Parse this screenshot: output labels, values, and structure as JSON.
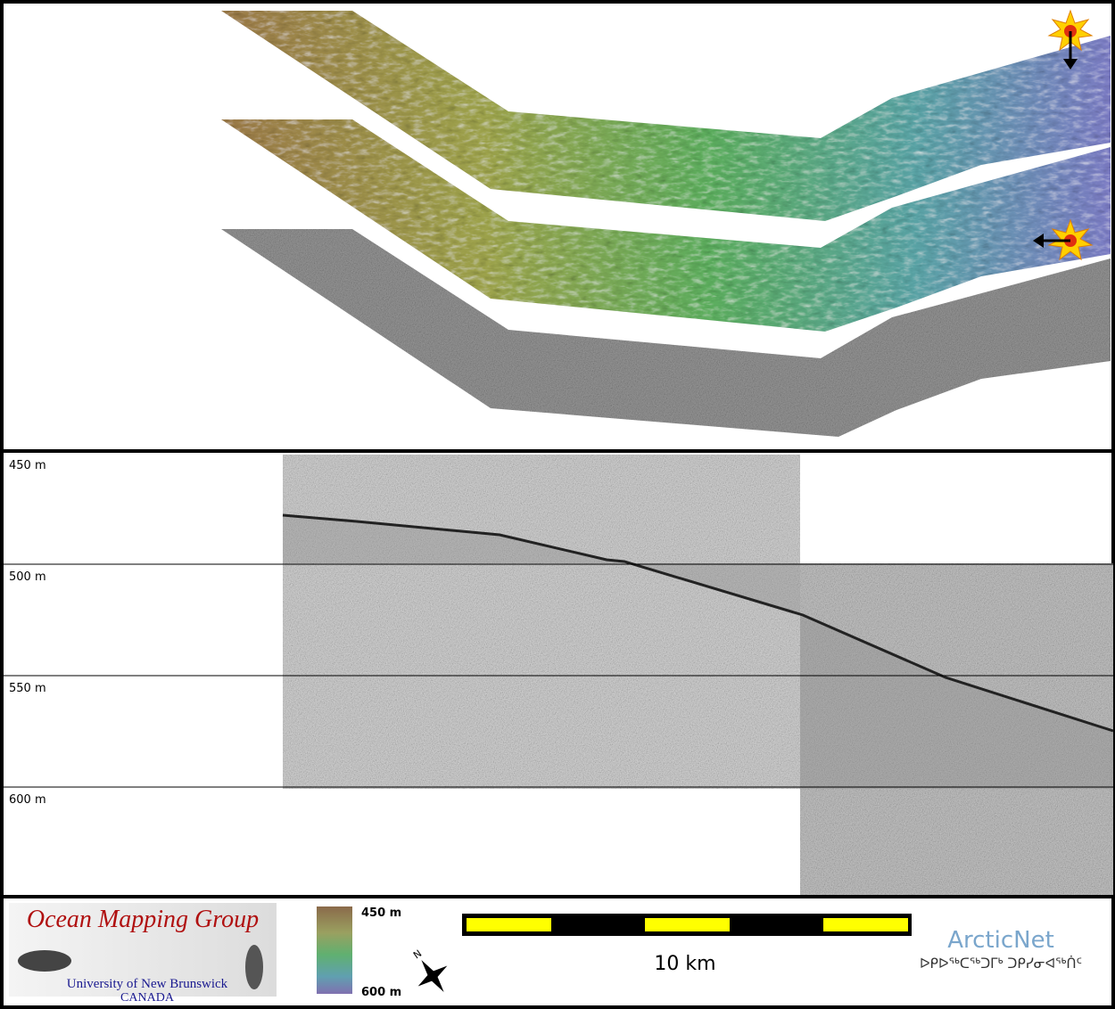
{
  "profile": {
    "depth_labels": [
      "450 m",
      "500 m",
      "550 m",
      "600 m"
    ]
  },
  "legend": {
    "top_label": "450 m",
    "bottom_label": "600 m"
  },
  "scale_bar": {
    "label": "10 km"
  },
  "logos": {
    "ocean_mapping": {
      "title": "Ocean Mapping Group",
      "university": "University of New Brunswick",
      "country": "CANADA"
    },
    "arcticnet": {
      "name": "ArcticNet",
      "syllabics": "ᐅᑭᐅᖅᑕᖅᑐᒥᒃ ᑐᑭᓯᓂᐊᖅᑏᑦ"
    }
  }
}
